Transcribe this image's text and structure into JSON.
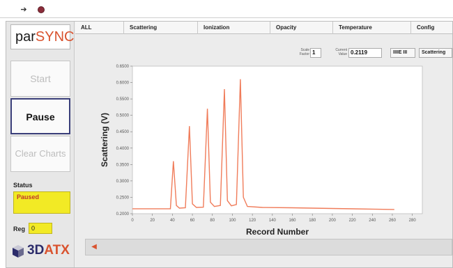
{
  "toolbar": {
    "run_icon": "run-arrow-icon",
    "stop_icon": "stop-circle-icon"
  },
  "sidebar": {
    "logo_part1": "par",
    "logo_part2": "SYNC",
    "start_label": "Start",
    "pause_label": "Pause",
    "clear_label": "Clear Charts",
    "status_label": "Status",
    "status_value": "Paused",
    "reg_label": "Reg",
    "reg_value": "0",
    "brand_part1": "3D",
    "brand_part2": "ATX"
  },
  "tabs": [
    "ALL",
    "Scattering",
    "Ionization",
    "Opacity",
    "Temperature",
    "Config"
  ],
  "controls": {
    "scale_factor_label": "Scale Factor",
    "scale_factor_value": "1",
    "current_value_label": "Current Value",
    "current_value": "0.2119",
    "display_button": "IIIIE III",
    "channel_select": "Scattering"
  },
  "colors": {
    "trace": "#f07c5a",
    "status_bg": "#f2ea25",
    "pause_border": "#3a3f7a"
  },
  "chart_data": {
    "type": "line",
    "title": "",
    "xlabel": "Record Number",
    "ylabel": "Scattering (V)",
    "xlim": [
      0,
      290
    ],
    "ylim": [
      0.2,
      0.65
    ],
    "x_ticks": [
      0,
      20,
      40,
      60,
      80,
      100,
      120,
      140,
      160,
      180,
      200,
      220,
      240,
      260,
      280
    ],
    "y_ticks": [
      "0.2000",
      "0.2500",
      "0.3000",
      "0.3500",
      "0.4000",
      "0.4500",
      "0.5000",
      "0.5500",
      "0.6000",
      "0.6500"
    ],
    "series": [
      {
        "name": "",
        "x": [
          0,
          20,
          38,
          41,
          44,
          47,
          53,
          57,
          60,
          64,
          71,
          75,
          78,
          82,
          88,
          92,
          95,
          99,
          104,
          108,
          111,
          115,
          130,
          160,
          200,
          240,
          262
        ],
        "y": [
          0.215,
          0.215,
          0.215,
          0.36,
          0.225,
          0.217,
          0.218,
          0.467,
          0.23,
          0.219,
          0.22,
          0.52,
          0.235,
          0.222,
          0.225,
          0.58,
          0.24,
          0.224,
          0.228,
          0.61,
          0.25,
          0.222,
          0.219,
          0.218,
          0.216,
          0.214,
          0.213
        ]
      }
    ],
    "grid": false
  }
}
